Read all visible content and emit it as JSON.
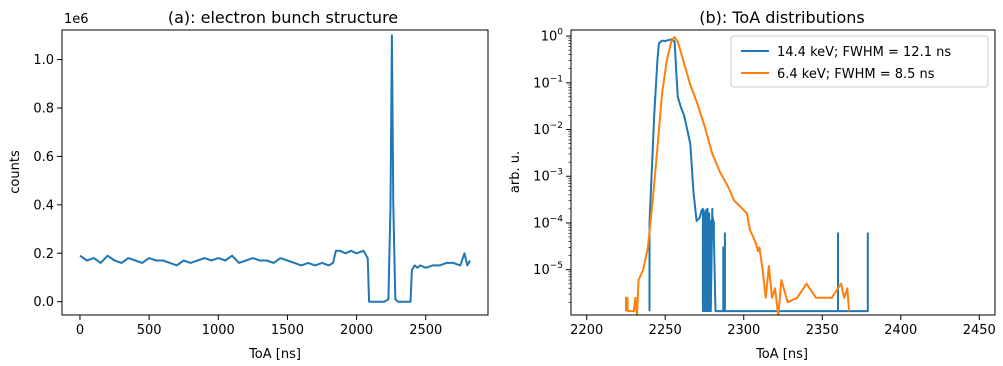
{
  "chart_data": [
    {
      "type": "line",
      "title": "(a): electron bunch structure",
      "xlabel": "ToA [ns]",
      "ylabel": "counts",
      "y_offset_text": "1e6",
      "xlim": [
        -130,
        2950
      ],
      "ylim": [
        -0.055,
        1.122
      ],
      "xticks": [
        0,
        500,
        1000,
        1500,
        2000,
        2500
      ],
      "xtick_labels": [
        "0",
        "500",
        "1000",
        "1500",
        "2000",
        "2500"
      ],
      "yticks": [
        0.0,
        0.2,
        0.4,
        0.6,
        0.8,
        1.0
      ],
      "ytick_labels": [
        "0.0",
        "0.2",
        "0.4",
        "0.6",
        "0.8",
        "1.0"
      ],
      "grid": false,
      "series": [
        {
          "color": "#1f77b4",
          "x": [
            0,
            50,
            100,
            150,
            200,
            250,
            300,
            350,
            400,
            450,
            500,
            550,
            600,
            650,
            700,
            750,
            800,
            850,
            900,
            950,
            1000,
            1050,
            1100,
            1150,
            1200,
            1250,
            1300,
            1350,
            1400,
            1450,
            1500,
            1550,
            1600,
            1650,
            1700,
            1750,
            1800,
            1830,
            1850,
            1880,
            1920,
            1960,
            2000,
            2050,
            2080,
            2090,
            2110,
            2200,
            2230,
            2245,
            2255,
            2265,
            2280,
            2300,
            2350,
            2390,
            2400,
            2420,
            2440,
            2460,
            2500,
            2550,
            2600,
            2650,
            2700,
            2750,
            2780,
            2800,
            2820
          ],
          "y": [
            0.19,
            0.17,
            0.18,
            0.16,
            0.19,
            0.17,
            0.16,
            0.18,
            0.17,
            0.16,
            0.18,
            0.17,
            0.17,
            0.16,
            0.15,
            0.17,
            0.16,
            0.17,
            0.18,
            0.17,
            0.18,
            0.17,
            0.19,
            0.16,
            0.17,
            0.18,
            0.17,
            0.17,
            0.16,
            0.18,
            0.17,
            0.16,
            0.15,
            0.16,
            0.15,
            0.16,
            0.15,
            0.16,
            0.21,
            0.21,
            0.2,
            0.21,
            0.2,
            0.21,
            0.18,
            0.0,
            0.0,
            0.0,
            0.01,
            0.4,
            1.1,
            0.4,
            0.01,
            0.0,
            0.0,
            0.0,
            0.13,
            0.15,
            0.14,
            0.15,
            0.14,
            0.15,
            0.15,
            0.16,
            0.16,
            0.15,
            0.2,
            0.15,
            0.17
          ]
        }
      ]
    },
    {
      "type": "line",
      "title": "(b): ToA distributions",
      "xlabel": "ToA [ns]",
      "ylabel": "arb. u.",
      "xlim": [
        2190,
        2460
      ],
      "ylim_log10": [
        -5.97,
        0.13
      ],
      "yscale": "log",
      "xticks": [
        2200,
        2250,
        2300,
        2350,
        2400,
        2450
      ],
      "xtick_labels": [
        "2200",
        "2250",
        "2300",
        "2350",
        "2400",
        "2450"
      ],
      "yticks_exp": [
        0,
        -1,
        -2,
        -3,
        -4,
        -5
      ],
      "ytick_base": "10",
      "ytick_exponents": [
        "0",
        "−1",
        "−2",
        "−3",
        "−4",
        "−5"
      ],
      "grid": false,
      "legend_position": "upper right",
      "series": [
        {
          "name": "14.4 keV; FWHM = 12.1 ns",
          "color": "#1f77b4",
          "x": [
            2240,
            2240,
            2241,
            2243,
            2245,
            2246,
            2248,
            2250,
            2252,
            2254,
            2256,
            2257,
            2258,
            2260,
            2262,
            2264,
            2266,
            2268,
            2270,
            2272,
            2273,
            2274,
            2274,
            2274,
            2275,
            2275,
            2276,
            2276,
            2276,
            2277,
            2277,
            2278,
            2278,
            2279,
            2279,
            2280,
            2280,
            2281,
            2281,
            2282,
            2287,
            2287,
            2287,
            2288,
            2288,
            2288,
            2360,
            2360,
            2360,
            2379,
            2379,
            2379
          ],
          "y": [
            1.3e-06,
            0.0001,
            0.0006,
            0.02,
            0.3,
            0.7,
            0.8,
            0.78,
            0.82,
            0.85,
            0.76,
            0.18,
            0.05,
            0.03,
            0.02,
            0.01,
            0.005,
            0.00045,
            0.00011,
            0.00013,
            0.00018,
            0.0002,
            1.3e-06,
            0.0002,
            0.00016,
            1.3e-06,
            0.0001,
            1.3e-06,
            0.00019,
            0.0002,
            1.3e-06,
            0.00016,
            1.3e-06,
            0.00011,
            1.3e-06,
            0.0002,
            0.00014,
            0.0001,
            5e-05,
            1.3e-06,
            1.3e-06,
            3e-05,
            1.3e-06,
            1.3e-06,
            6e-05,
            1.3e-06,
            1.3e-06,
            6e-05,
            1.3e-06,
            1.3e-06,
            6e-05,
            1.3e-06
          ]
        },
        {
          "name": "6.4 keV; FWHM = 8.5 ns",
          "color": "#ff7f0e",
          "x": [
            2225,
            2225,
            2226,
            2226,
            2230,
            2231,
            2232,
            2233,
            2236,
            2239,
            2242,
            2245,
            2248,
            2251,
            2254,
            2256,
            2258,
            2260,
            2263,
            2266,
            2270,
            2275,
            2280,
            2285,
            2290,
            2294,
            2298,
            2302,
            2304,
            2306,
            2308,
            2309,
            2310,
            2312,
            2313,
            2314,
            2316,
            2318,
            2320,
            2322,
            2324,
            2328,
            2334,
            2340,
            2346,
            2350,
            2356,
            2362,
            2364,
            2366,
            2367
          ],
          "y": [
            1.3e-06,
            2.5e-06,
            2.5e-06,
            1.3e-06,
            1.3e-06,
            2.5e-06,
            1e-06,
            6e-06,
            1e-05,
            3e-05,
            0.0003,
            0.004,
            0.06,
            0.3,
            0.8,
            0.95,
            0.75,
            0.45,
            0.2,
            0.09,
            0.04,
            0.012,
            0.003,
            0.0012,
            0.0006,
            0.0003,
            0.00022,
            0.00016,
            7e-05,
            5e-05,
            3.5e-05,
            2.5e-05,
            3e-05,
            1e-05,
            5e-06,
            2.5e-06,
            1.2e-05,
            2.5e-06,
            4e-06,
            1e-06,
            6e-06,
            2e-06,
            2.5e-06,
            5e-06,
            2.5e-06,
            2.5e-06,
            2.5e-06,
            5e-06,
            2.5e-06,
            4e-06,
            1.3e-06
          ]
        }
      ]
    }
  ]
}
